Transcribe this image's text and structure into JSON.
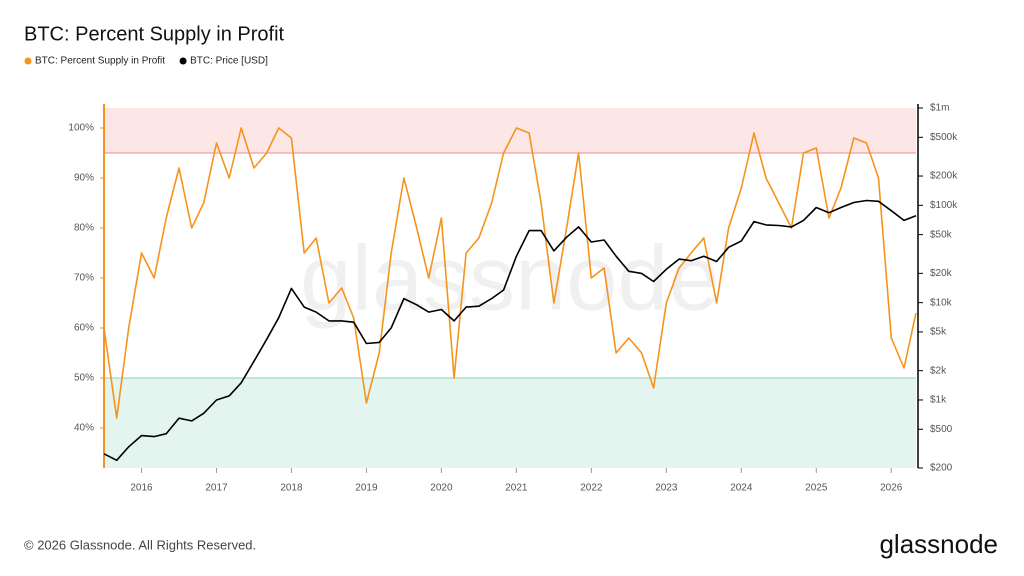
{
  "chart_data": {
    "type": "line",
    "title": "BTC: Percent Supply in Profit",
    "watermark": "glassnode",
    "footer": "© 2026 Glassnode. All Rights Reserved.",
    "logo": "glassnode",
    "x": [
      2015.5,
      2015.67,
      2015.83,
      2016,
      2016.17,
      2016.33,
      2016.5,
      2016.67,
      2016.83,
      2017,
      2017.17,
      2017.33,
      2017.5,
      2017.67,
      2017.83,
      2018,
      2018.17,
      2018.33,
      2018.5,
      2018.67,
      2018.83,
      2019,
      2019.17,
      2019.33,
      2019.5,
      2019.67,
      2019.83,
      2020,
      2020.17,
      2020.33,
      2020.5,
      2020.67,
      2020.83,
      2021,
      2021.17,
      2021.33,
      2021.5,
      2021.67,
      2021.83,
      2022,
      2022.17,
      2022.33,
      2022.5,
      2022.67,
      2022.83,
      2023,
      2023.17,
      2023.33,
      2023.5,
      2023.67,
      2023.83,
      2024,
      2024.17,
      2024.33,
      2024.5,
      2024.67,
      2024.83,
      2025,
      2025.17,
      2025.33,
      2025.5,
      2025.67,
      2025.83,
      2026,
      2026.17,
      2026.33
    ],
    "xlim": [
      2015.5,
      2026.33
    ],
    "xticks": [
      2016,
      2017,
      2018,
      2019,
      2020,
      2021,
      2022,
      2023,
      2024,
      2025,
      2026
    ],
    "ylim": [
      32,
      104
    ],
    "yticks": [
      {
        "value": 40,
        "label": "40%"
      },
      {
        "value": 50,
        "label": "50%"
      },
      {
        "value": 60,
        "label": "60%"
      },
      {
        "value": 70,
        "label": "70%"
      },
      {
        "value": 80,
        "label": "80%"
      },
      {
        "value": 90,
        "label": "90%"
      },
      {
        "value": 100,
        "label": "100%"
      }
    ],
    "y2lim": [
      200,
      1000000
    ],
    "y2_log": true,
    "y2ticks": [
      {
        "value": 200,
        "label": "$200"
      },
      {
        "value": 500,
        "label": "$500"
      },
      {
        "value": 1000,
        "label": "$1k"
      },
      {
        "value": 2000,
        "label": "$2k"
      },
      {
        "value": 5000,
        "label": "$5k"
      },
      {
        "value": 10000,
        "label": "$10k"
      },
      {
        "value": 20000,
        "label": "$20k"
      },
      {
        "value": 50000,
        "label": "$50k"
      },
      {
        "value": 100000,
        "label": "$100k"
      },
      {
        "value": 200000,
        "label": "$200k"
      },
      {
        "value": 500000,
        "label": "$500k"
      },
      {
        "value": 1000000,
        "label": "$1m"
      }
    ],
    "zones": [
      {
        "from": 95,
        "color": "#fde6e6",
        "line_color": "#f08a8a"
      },
      {
        "to": 50,
        "color": "#e3f5ee",
        "line_color": "#8fd3b4"
      }
    ],
    "series": [
      {
        "name": "BTC: Percent Supply in Profit",
        "color": "#f7931a",
        "values": [
          60,
          42,
          60,
          75,
          70,
          82,
          92,
          80,
          85,
          97,
          90,
          100,
          92,
          95,
          100,
          98,
          75,
          78,
          65,
          68,
          62,
          45,
          55,
          75,
          90,
          80,
          70,
          82,
          50,
          75,
          78,
          85,
          95,
          100,
          99,
          85,
          65,
          80,
          95,
          70,
          72,
          55,
          58,
          55,
          48,
          65,
          72,
          75,
          78,
          65,
          80,
          88,
          99,
          90,
          85,
          80,
          95,
          96,
          82,
          88,
          98,
          97,
          90,
          58,
          52,
          63
        ]
      },
      {
        "name": "BTC: Price [USD]",
        "color": "#000000",
        "axis": "y2",
        "values": [
          280,
          240,
          330,
          430,
          420,
          450,
          650,
          610,
          730,
          1000,
          1100,
          1500,
          2500,
          4200,
          7000,
          14000,
          9000,
          8000,
          6500,
          6500,
          6300,
          3800,
          3900,
          5500,
          11000,
          9500,
          8000,
          8500,
          6500,
          9000,
          9200,
          11000,
          13500,
          30000,
          55000,
          55000,
          34000,
          47000,
          60000,
          42000,
          44000,
          30000,
          21000,
          20000,
          16500,
          22000,
          28000,
          27000,
          30000,
          26500,
          37000,
          43000,
          68000,
          63000,
          62000,
          60000,
          70000,
          95000,
          84000,
          95000,
          107000,
          112000,
          110000,
          88000,
          70000,
          78000
        ]
      }
    ]
  }
}
